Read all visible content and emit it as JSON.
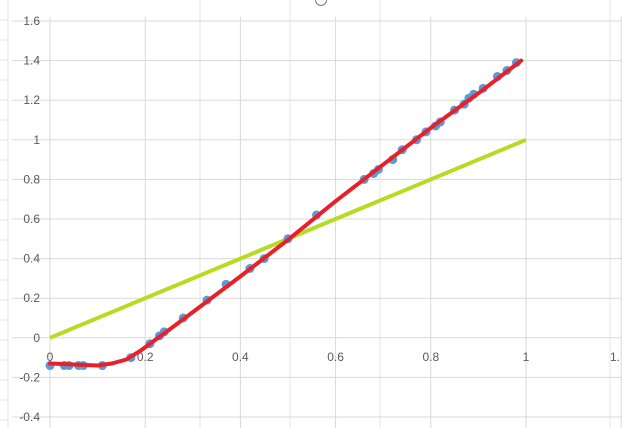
{
  "chart_data": {
    "type": "scatter",
    "title": "",
    "xlabel": "",
    "ylabel": "",
    "xlim": [
      0,
      1.2
    ],
    "ylim": [
      -0.4,
      1.6
    ],
    "x_ticks": [
      "0",
      "0.2",
      "0.4",
      "0.6",
      "0.8",
      "1",
      "1."
    ],
    "y_ticks": [
      "1.6",
      "1.4",
      "1.2",
      "1",
      "0.8",
      "0.6",
      "0.4",
      "0.2",
      "0",
      "-0.2",
      "-0.4"
    ],
    "grid": true,
    "legend": "none",
    "colors": {
      "points": "#5b9bd5",
      "fit": "#e8202a",
      "reference": "#b5dc21",
      "grid": "#d9d9d9"
    },
    "series": [
      {
        "kind": "scatter",
        "values": [
          [
            0.0,
            -0.14
          ],
          [
            0.03,
            -0.14
          ],
          [
            0.04,
            -0.14
          ],
          [
            0.06,
            -0.14
          ],
          [
            0.07,
            -0.14
          ],
          [
            0.11,
            -0.14
          ],
          [
            0.17,
            -0.1
          ],
          [
            0.21,
            -0.03
          ],
          [
            0.23,
            0.01
          ],
          [
            0.24,
            0.03
          ],
          [
            0.28,
            0.1
          ],
          [
            0.33,
            0.19
          ],
          [
            0.37,
            0.27
          ],
          [
            0.42,
            0.35
          ],
          [
            0.45,
            0.4
          ],
          [
            0.5,
            0.5
          ],
          [
            0.56,
            0.62
          ],
          [
            0.66,
            0.8
          ],
          [
            0.68,
            0.83
          ],
          [
            0.69,
            0.85
          ],
          [
            0.72,
            0.9
          ],
          [
            0.74,
            0.95
          ],
          [
            0.77,
            1.0
          ],
          [
            0.79,
            1.04
          ],
          [
            0.81,
            1.07
          ],
          [
            0.82,
            1.09
          ],
          [
            0.85,
            1.15
          ],
          [
            0.87,
            1.18
          ],
          [
            0.88,
            1.21
          ],
          [
            0.89,
            1.23
          ],
          [
            0.91,
            1.26
          ],
          [
            0.94,
            1.32
          ],
          [
            0.96,
            1.35
          ],
          [
            0.98,
            1.39
          ]
        ]
      },
      {
        "kind": "line",
        "values": [
          [
            0.0,
            -0.13
          ],
          [
            0.05,
            -0.135
          ],
          [
            0.1,
            -0.14
          ],
          [
            0.13,
            -0.13
          ],
          [
            0.16,
            -0.11
          ],
          [
            0.19,
            -0.065
          ],
          [
            0.21,
            -0.03
          ],
          [
            0.25,
            0.04
          ],
          [
            0.3,
            0.13
          ],
          [
            0.4,
            0.31
          ],
          [
            0.5,
            0.495
          ],
          [
            0.6,
            0.69
          ],
          [
            0.7,
            0.875
          ],
          [
            0.8,
            1.06
          ],
          [
            0.9,
            1.235
          ],
          [
            0.99,
            1.4
          ]
        ]
      },
      {
        "kind": "line",
        "values": [
          [
            0.0,
            0.0
          ],
          [
            1.0,
            1.0
          ]
        ]
      }
    ]
  }
}
